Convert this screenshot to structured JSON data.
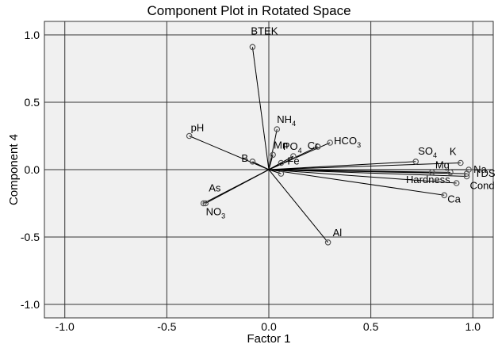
{
  "chart_data": {
    "type": "scatter",
    "title": "Component Plot in Rotated Space",
    "xlabel": "Factor 1",
    "ylabel": "Component 4",
    "xlim": [
      -1.1,
      1.1
    ],
    "ylim": [
      -1.1,
      1.1
    ],
    "x_ticks": [
      -1.0,
      -0.5,
      0.0,
      0.5,
      1.0
    ],
    "y_ticks": [
      -1.0,
      -0.5,
      0.0,
      0.5,
      1.0
    ],
    "x_tick_labels": [
      "-1.0",
      "-0.5",
      "0.0",
      "0.5",
      "1.0"
    ],
    "y_tick_labels": [
      "-1.0",
      "-0.5",
      "0.0",
      "0.5",
      "1.0"
    ],
    "grid": true,
    "vectors_from_origin": true,
    "points": [
      {
        "label": "BTEK",
        "sub": "",
        "x": -0.08,
        "y": 0.91
      },
      {
        "label": "NH",
        "sub": "4",
        "x": 0.04,
        "y": 0.3
      },
      {
        "label": "pH",
        "sub": "",
        "x": -0.39,
        "y": 0.25
      },
      {
        "label": "Mn",
        "sub": "",
        "x": 0.02,
        "y": 0.11
      },
      {
        "label": "PO",
        "sub": "4",
        "x": 0.12,
        "y": 0.1
      },
      {
        "label": "Cr",
        "sub": "",
        "x": 0.24,
        "y": 0.17
      },
      {
        "label": "HCO",
        "sub": "3",
        "x": 0.3,
        "y": 0.2
      },
      {
        "label": "B",
        "sub": "",
        "x": -0.08,
        "y": 0.06
      },
      {
        "label": "Fe",
        "sub": "",
        "x": 0.06,
        "y": 0.05
      },
      {
        "label": "",
        "sub": "",
        "x": 0.06,
        "y": -0.03
      },
      {
        "label": "SO",
        "sub": "4",
        "x": 0.72,
        "y": 0.06
      },
      {
        "label": "K",
        "sub": "",
        "x": 0.94,
        "y": 0.05
      },
      {
        "label": "Na",
        "sub": "",
        "x": 0.98,
        "y": 0.0
      },
      {
        "label": "Mg",
        "sub": "",
        "x": 0.8,
        "y": -0.02
      },
      {
        "label": "TDS",
        "sub": "",
        "x": 0.97,
        "y": -0.03
      },
      {
        "label": "",
        "sub": "",
        "x": 0.89,
        "y": -0.02
      },
      {
        "label": "Hardness",
        "sub": "",
        "x": 0.92,
        "y": -0.1
      },
      {
        "label": "Cond",
        "sub": "",
        "x": 0.97,
        "y": -0.05
      },
      {
        "label": "Ca",
        "sub": "",
        "x": 0.86,
        "y": -0.19
      },
      {
        "label": "As",
        "sub": "",
        "x": -0.31,
        "y": -0.25
      },
      {
        "label": "NO",
        "sub": "3",
        "x": -0.32,
        "y": -0.25
      },
      {
        "label": "Al",
        "sub": "",
        "x": 0.29,
        "y": -0.54
      }
    ]
  },
  "colors": {
    "plot_bg": "#f0f0f0",
    "grid": "#333333",
    "marker": "#555555",
    "vector": "#000000"
  }
}
